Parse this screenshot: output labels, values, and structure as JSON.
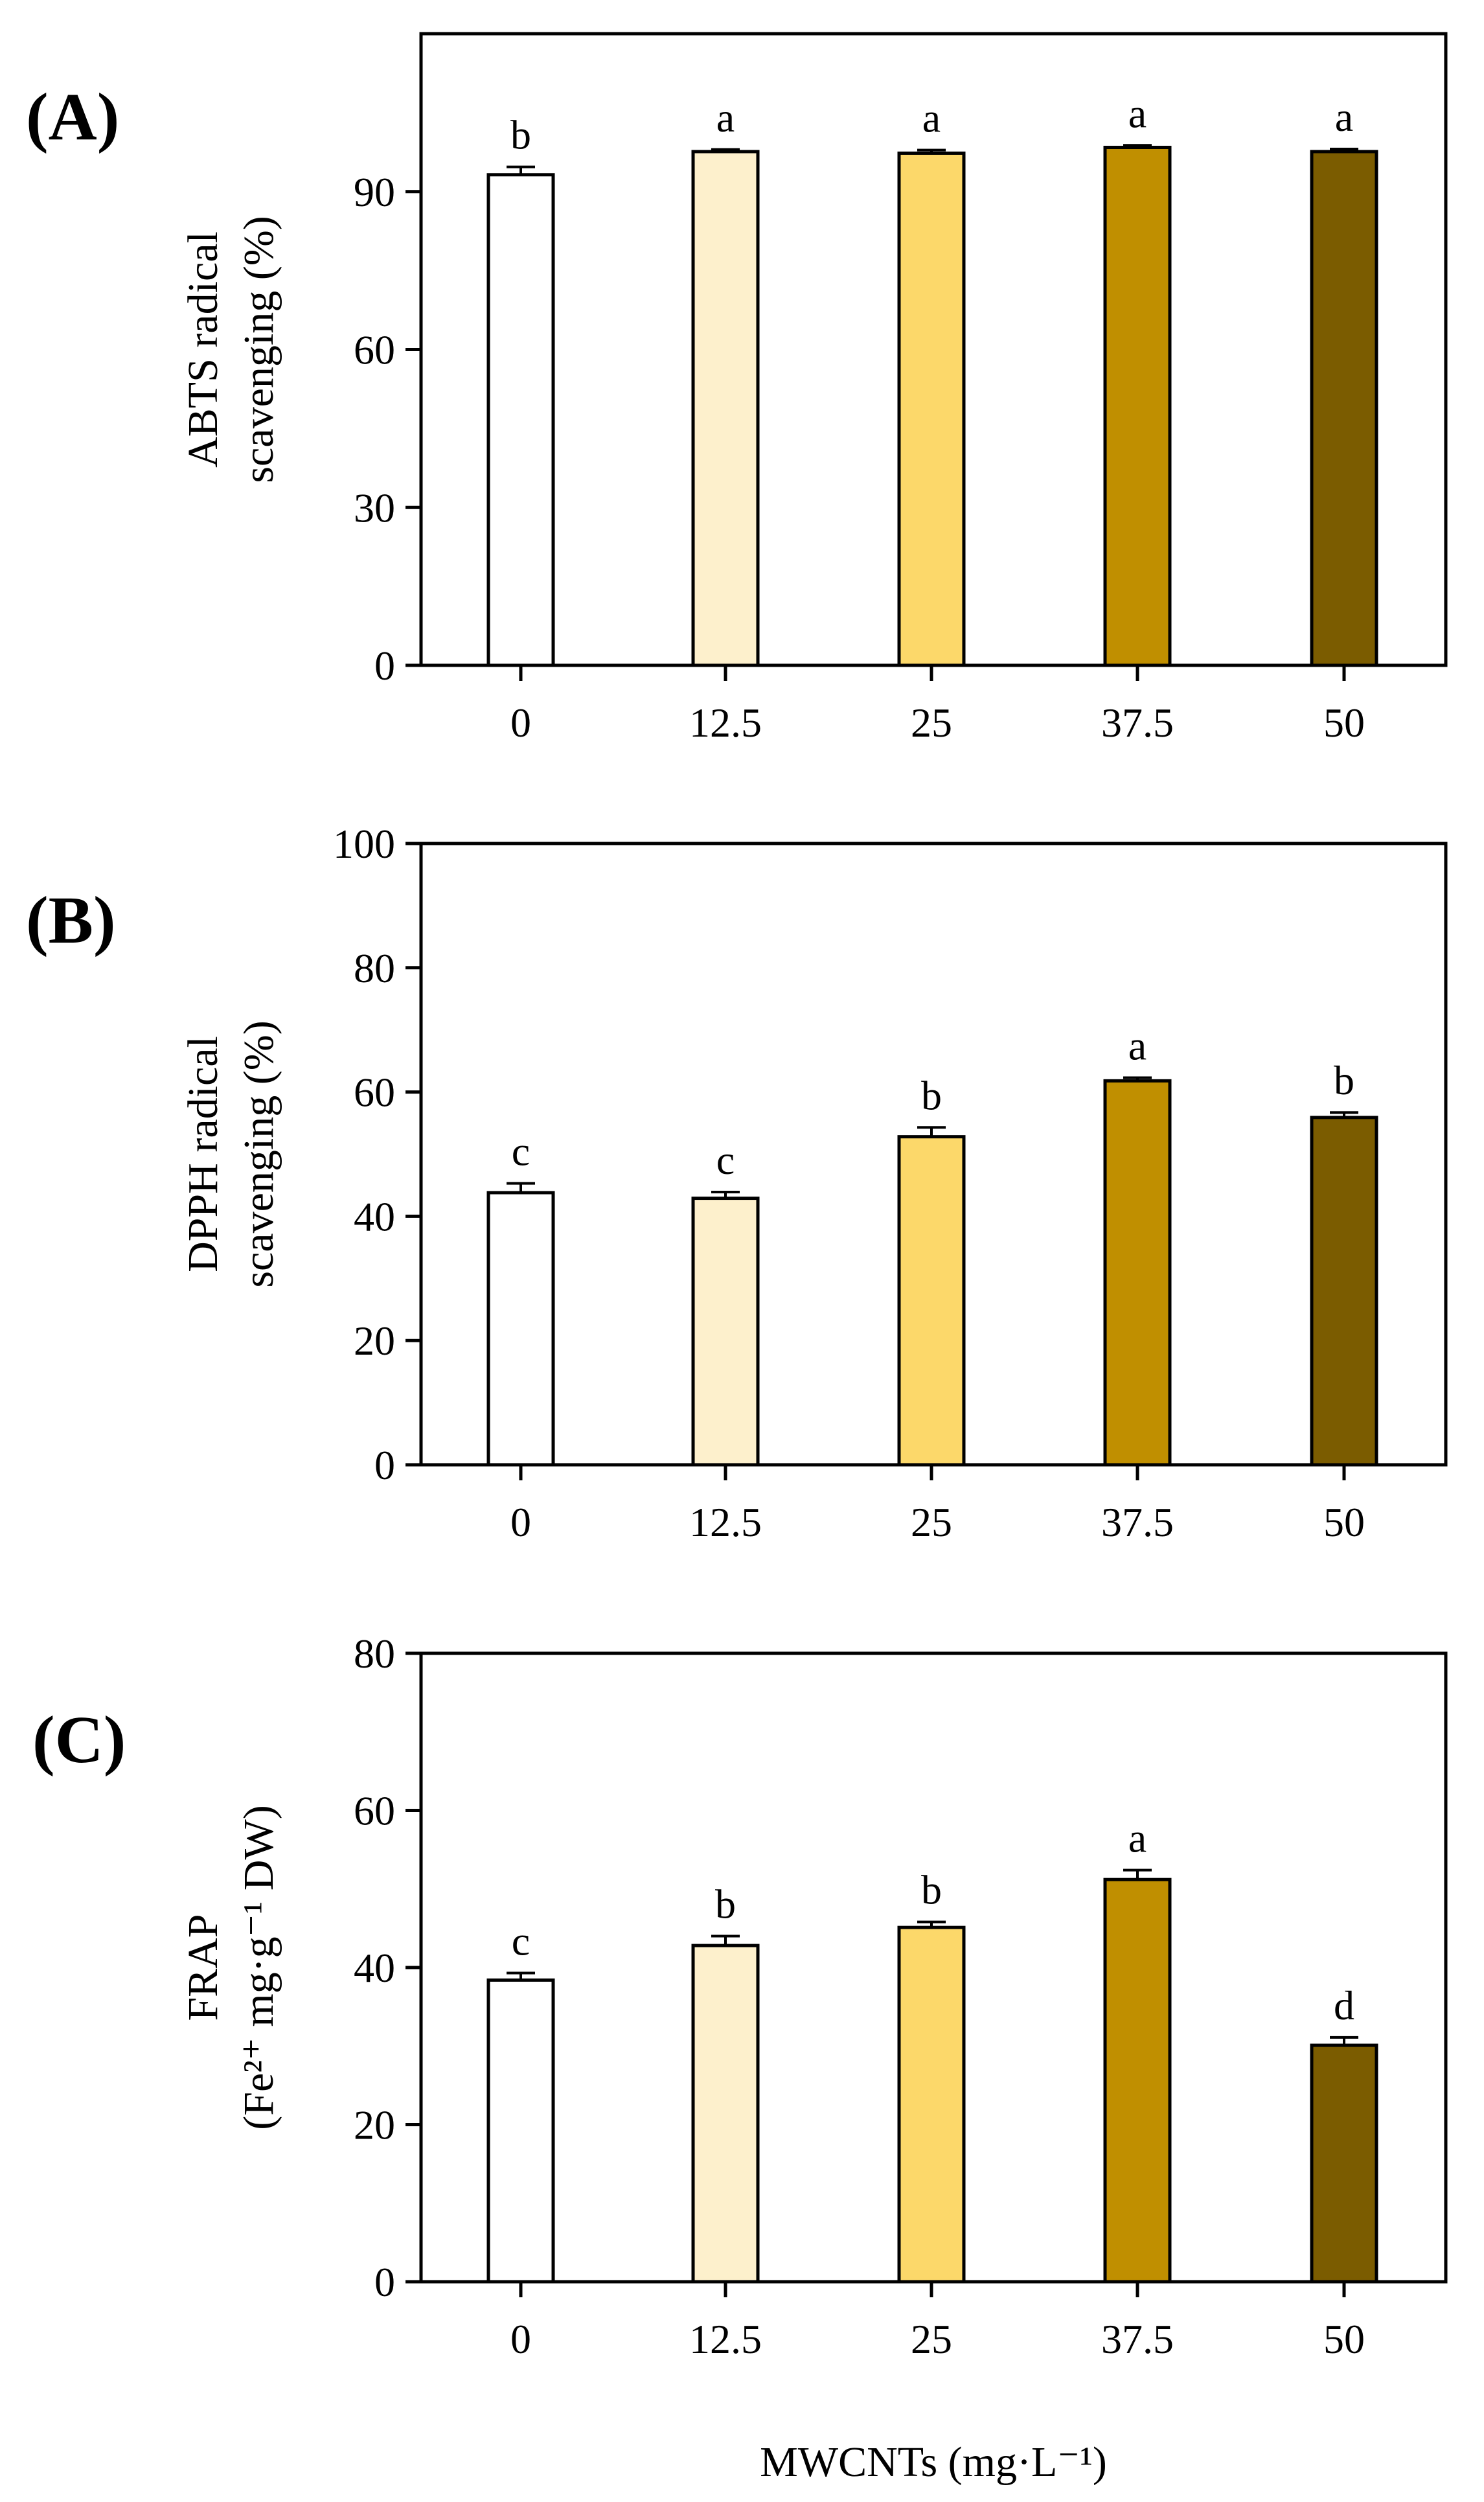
{
  "chart_data": [
    {
      "type": "bar",
      "panel_label": "(A)",
      "categories": [
        "0",
        "12.5",
        "25",
        "37.5",
        "50"
      ],
      "values": [
        93.2,
        97.6,
        97.3,
        98.4,
        97.6
      ],
      "errors": [
        1.5,
        0.4,
        0.6,
        0.4,
        0.5
      ],
      "letters": [
        "b",
        "a",
        "a",
        "a",
        "a"
      ],
      "colors": [
        "#ffffff",
        "#fdf0cc",
        "#fcd86a",
        "#c08f00",
        "#7b5c00"
      ],
      "ylabel_lines": [
        "ABTS radical",
        "scavenging (%)"
      ],
      "ylim": [
        0,
        120
      ],
      "yticks": [
        0,
        30,
        60,
        90
      ],
      "ytick_labels": [
        "0",
        "30",
        "60",
        "90"
      ]
    },
    {
      "type": "bar",
      "panel_label": "(B)",
      "categories": [
        "0",
        "12.5",
        "25",
        "37.5",
        "50"
      ],
      "values": [
        43.8,
        42.9,
        52.8,
        61.8,
        55.9
      ],
      "errors": [
        1.5,
        1.0,
        1.5,
        0.5,
        0.8
      ],
      "letters": [
        "c",
        "c",
        "b",
        "a",
        "b"
      ],
      "colors": [
        "#ffffff",
        "#fdf0cc",
        "#fcd86a",
        "#c08f00",
        "#7b5c00"
      ],
      "ylabel_lines": [
        "DPPH radical",
        "scavenging (%)"
      ],
      "ylim": [
        0,
        100
      ],
      "yticks": [
        0,
        20,
        40,
        60,
        80,
        100
      ],
      "ytick_labels": [
        "0",
        "20",
        "40",
        "60",
        "80",
        "100"
      ]
    },
    {
      "type": "bar",
      "panel_label": "(C)",
      "categories": [
        "0",
        "12.5",
        "25",
        "37.5",
        "50"
      ],
      "values": [
        38.4,
        42.8,
        45.1,
        51.2,
        30.1
      ],
      "errors": [
        0.9,
        1.2,
        0.7,
        1.2,
        1.0
      ],
      "letters": [
        "c",
        "b",
        "b",
        "a",
        "d"
      ],
      "colors": [
        "#ffffff",
        "#fdf0cc",
        "#fcd86a",
        "#c08f00",
        "#7b5c00"
      ],
      "ylabel_lines": [
        "FRAP",
        "(Fe²⁺ mg·g⁻¹ DW)"
      ],
      "ylim": [
        0,
        80
      ],
      "yticks": [
        0,
        20,
        40,
        60,
        80
      ],
      "ytick_labels": [
        "0",
        "20",
        "40",
        "60",
        "80"
      ],
      "xlabel": "MWCNTs (mg·L⁻¹)"
    }
  ]
}
